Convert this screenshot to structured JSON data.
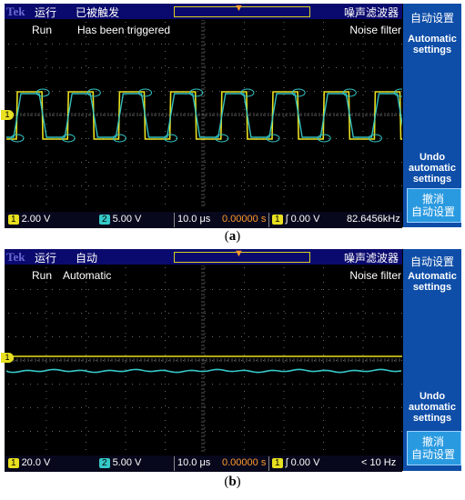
{
  "panels": [
    {
      "caption_open": "(",
      "caption_letter": "a",
      "caption_close": ")",
      "brand": "Tek",
      "run_cn": "运行",
      "trigger_cn": "已被触发",
      "noise_filter_cn": "噪声滤波器",
      "status_run": "Run",
      "status_trigger": "Has been triggered",
      "status_noise": "Noise filter",
      "menu": {
        "autoset_cn": "自动设置",
        "autoset_en_line1": "Automatic",
        "autoset_en_line2": "settings",
        "undo_line1": "Undo",
        "undo_line2": "automatic",
        "undo_line3": "settings",
        "undo_cn_line1": "撤消",
        "undo_cn_line2": "自动设置"
      },
      "readout": {
        "ch1_badge": "1",
        "ch1_scale": "2.00 V",
        "ch2_badge": "2",
        "ch2_scale": "5.00 V",
        "timebase": "10.0 μs",
        "offset": "0.00000 s",
        "trig_badge": "1",
        "trig_level": "∫ 0.00 V",
        "frequency": "82.6456kHz"
      },
      "ch1_marker": "1",
      "waveform": "square",
      "colors": {
        "ch1": "#e8e020",
        "ch2": "#36c8c8"
      }
    },
    {
      "caption_open": "(",
      "caption_letter": "b",
      "caption_close": ")",
      "brand": "Tek",
      "run_cn": "运行",
      "trigger_cn": "自动",
      "noise_filter_cn": "噪声滤波器",
      "status_run": "Run",
      "status_trigger": "Automatic",
      "status_noise": "Noise filter",
      "menu": {
        "autoset_cn": "自动设置",
        "autoset_en_line1": "Automatic",
        "autoset_en_line2": "settings",
        "undo_line1": "Undo",
        "undo_line2": "automatic",
        "undo_line3": "settings",
        "undo_cn_line1": "撤消",
        "undo_cn_line2": "自动设置"
      },
      "readout": {
        "ch1_badge": "1",
        "ch1_scale": "20.0 V",
        "ch2_badge": "2",
        "ch2_scale": "5.00 V",
        "timebase": "10.0 μs",
        "offset": "0.00000 s",
        "trig_badge": "1",
        "trig_level": "∫ 0.00 V",
        "frequency": "< 10 Hz"
      },
      "ch1_marker": "1",
      "waveform": "flat",
      "colors": {
        "ch1": "#e8e020",
        "ch2": "#36c8c8"
      }
    }
  ]
}
